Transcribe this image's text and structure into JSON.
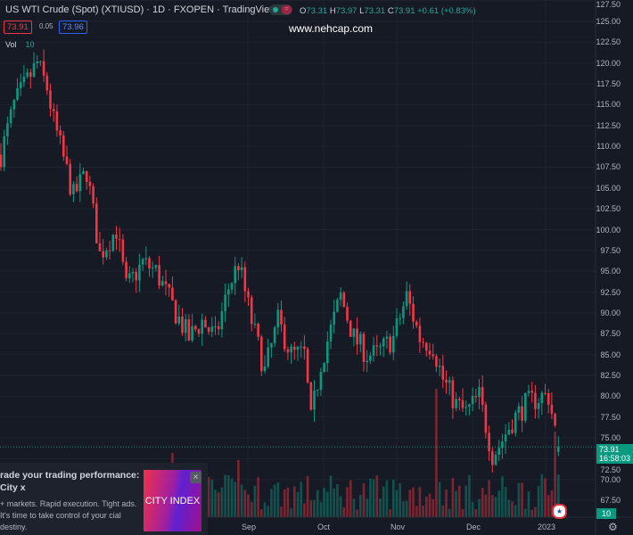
{
  "header": {
    "title": "US WTI Crude (Spot) (XTIUSD) · 1D · FXOPEN · TradingView",
    "open_label": "O",
    "open": "73.31",
    "high_label": "H",
    "high": "73.97",
    "low_label": "L",
    "low": "73.31",
    "close_label": "C",
    "close": "73.91",
    "change": "+0.61 (+0.83%)",
    "bid": "73.91",
    "spread": "0.05",
    "ask": "73.96",
    "watermark": "www.nehcap.com",
    "vol_label": "Vol",
    "vol_value": "10"
  },
  "price_axis": {
    "labels": [
      "127.50",
      "125.00",
      "122.50",
      "120.00",
      "117.50",
      "115.00",
      "112.50",
      "110.00",
      "107.50",
      "105.00",
      "102.50",
      "100.00",
      "97.50",
      "95.00",
      "92.50",
      "90.00",
      "87.50",
      "85.00",
      "82.50",
      "80.00",
      "77.50",
      "75.00",
      "72.50",
      "70.00",
      "67.50"
    ],
    "last_price": "73.91",
    "countdown": "16:58:03",
    "vol_tag": "10"
  },
  "time_axis": {
    "labels": [
      "Sep",
      "Oct",
      "Nov",
      "Dec",
      "2023"
    ]
  },
  "colors": {
    "up": "#089981",
    "down": "#f23645",
    "background": "#161a25"
  },
  "ad": {
    "title": "rade your trading performance: City x",
    "body": "+ markets. Rapid execution. Tight ads. It's time to take control of your cial destiny.",
    "brand": "CITY INDEX",
    "close": "×"
  },
  "chart_data": {
    "type": "candlestick",
    "title": "US WTI Crude (Spot) (XTIUSD) · 1D",
    "ylim": [
      66,
      128
    ],
    "x_ticks": [
      "Sep",
      "Oct",
      "Nov",
      "Dec",
      "2023"
    ],
    "close_waypoints": [
      [
        0,
        109
      ],
      [
        4,
        115
      ],
      [
        11,
        120
      ],
      [
        14,
        117
      ],
      [
        16,
        113
      ],
      [
        22,
        104
      ],
      [
        26,
        107
      ],
      [
        30,
        97
      ],
      [
        35,
        100
      ],
      [
        38,
        93
      ],
      [
        43,
        96
      ],
      [
        47,
        95
      ],
      [
        53,
        90
      ],
      [
        57,
        87
      ],
      [
        61,
        89
      ],
      [
        65,
        87
      ],
      [
        69,
        93
      ],
      [
        72,
        96
      ],
      [
        76,
        89
      ],
      [
        80,
        83
      ],
      [
        84,
        89
      ],
      [
        88,
        85
      ],
      [
        92,
        85
      ],
      [
        94,
        77
      ],
      [
        97,
        84
      ],
      [
        103,
        92
      ],
      [
        107,
        87
      ],
      [
        111,
        85
      ],
      [
        114,
        85
      ],
      [
        119,
        87
      ],
      [
        123,
        92
      ],
      [
        127,
        87
      ],
      [
        131,
        86
      ],
      [
        134,
        82
      ],
      [
        138,
        79
      ],
      [
        141,
        78
      ],
      [
        145,
        80
      ],
      [
        149,
        73
      ],
      [
        151,
        74
      ],
      [
        155,
        77
      ],
      [
        159,
        79
      ],
      [
        164,
        80
      ],
      [
        166,
        80
      ],
      [
        168,
        76
      ],
      [
        169,
        73.91
      ]
    ],
    "volume_spikes": [
      [
        52,
        9
      ],
      [
        72,
        8
      ],
      [
        132,
        18
      ],
      [
        168,
        12
      ]
    ]
  }
}
